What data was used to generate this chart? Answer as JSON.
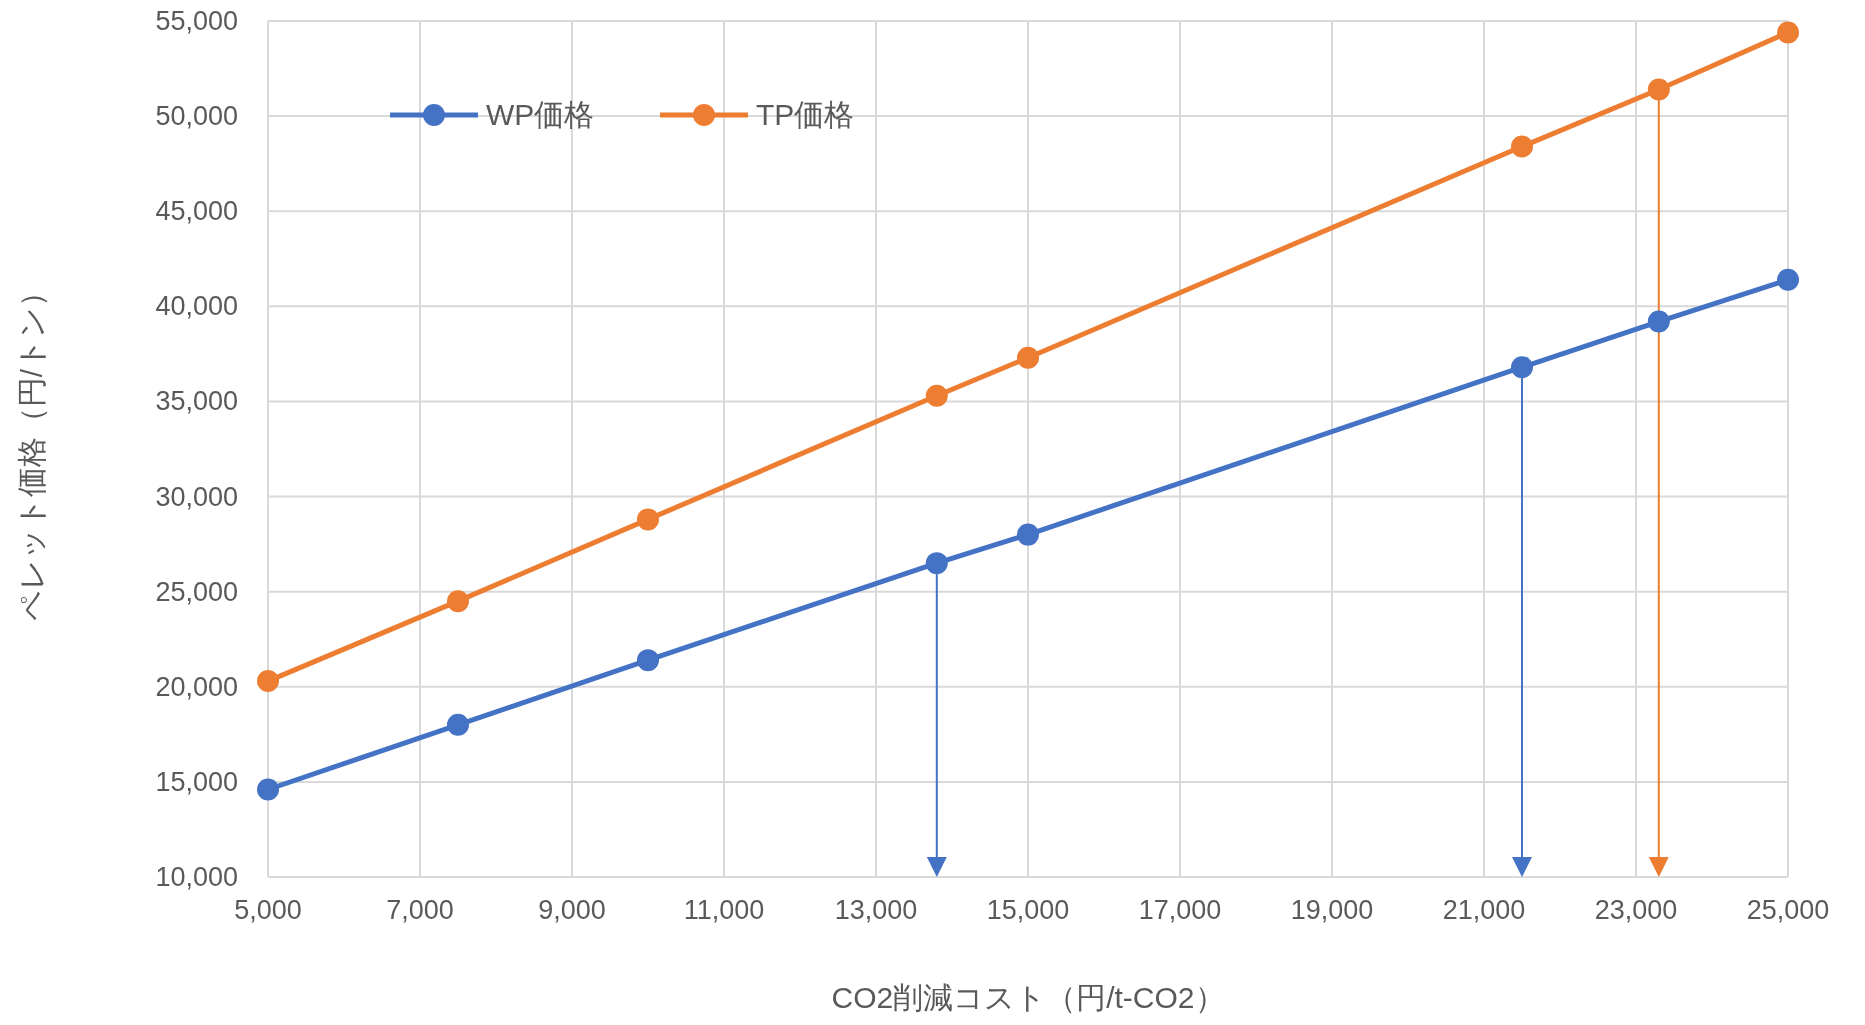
{
  "chart_data": {
    "type": "line",
    "xlabel": "CO2削減コスト（円/t-CO2）",
    "ylabel": "ペレット価格（円/トン）",
    "x": [
      5000,
      7500,
      10000,
      13800,
      15000,
      21500,
      23300,
      25000
    ],
    "series": [
      {
        "name": "WP価格",
        "color": "#4472c4",
        "values": [
          14600,
          18000,
          21400,
          26500,
          28000,
          36800,
          39200,
          41400
        ]
      },
      {
        "name": "TP価格",
        "color": "#ed7d31",
        "values": [
          20300,
          24500,
          28800,
          35300,
          37300,
          48400,
          51400,
          54400
        ]
      }
    ],
    "xlim": [
      5000,
      25000
    ],
    "xticks": [
      {
        "value": 5000,
        "label": "5,000"
      },
      {
        "value": 7000,
        "label": "7,000"
      },
      {
        "value": 9000,
        "label": "9,000"
      },
      {
        "value": 11000,
        "label": "11,000"
      },
      {
        "value": 13000,
        "label": "13,000"
      },
      {
        "value": 15000,
        "label": "15,000"
      },
      {
        "value": 17000,
        "label": "17,000"
      },
      {
        "value": 19000,
        "label": "19,000"
      },
      {
        "value": 21000,
        "label": "21,000"
      },
      {
        "value": 23000,
        "label": "23,000"
      },
      {
        "value": 25000,
        "label": "25,000"
      }
    ],
    "ylim": [
      10000,
      55000
    ],
    "yticks": [
      {
        "value": 10000,
        "label": "10,000"
      },
      {
        "value": 15000,
        "label": "15,000"
      },
      {
        "value": 20000,
        "label": "20,000"
      },
      {
        "value": 25000,
        "label": "25,000"
      },
      {
        "value": 30000,
        "label": "30,000"
      },
      {
        "value": 35000,
        "label": "35,000"
      },
      {
        "value": 40000,
        "label": "40,000"
      },
      {
        "value": 45000,
        "label": "45,000"
      },
      {
        "value": 50000,
        "label": "50,000"
      },
      {
        "value": 55000,
        "label": "55,000"
      }
    ],
    "ref_lines": [
      {
        "axis": "x",
        "value": 13800,
        "color": "#4472c4"
      },
      {
        "axis": "x",
        "value": 21500,
        "color": "#4472c4"
      },
      {
        "axis": "x",
        "value": 23300,
        "color": "#ed7d31"
      }
    ],
    "grid": true,
    "legend": "top left",
    "marker": "circle",
    "line_style": "solid"
  }
}
